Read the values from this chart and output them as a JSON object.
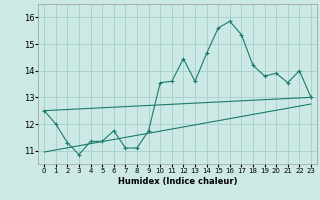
{
  "xlabel": "Humidex (Indice chaleur)",
  "background_color": "#cce9e5",
  "grid_color": "#aad4ce",
  "line_color": "#1a7a6e",
  "xlim": [
    -0.5,
    23.5
  ],
  "ylim": [
    10.5,
    16.5
  ],
  "yticks": [
    11,
    12,
    13,
    14,
    15,
    16
  ],
  "xticks": [
    0,
    1,
    2,
    3,
    4,
    5,
    6,
    7,
    8,
    9,
    10,
    11,
    12,
    13,
    14,
    15,
    16,
    17,
    18,
    19,
    20,
    21,
    22,
    23
  ],
  "main_line_x": [
    0,
    1,
    2,
    3,
    4,
    5,
    6,
    7,
    8,
    9,
    10,
    11,
    12,
    13,
    14,
    15,
    16,
    17,
    18,
    19,
    20,
    21,
    22,
    23
  ],
  "main_line_y": [
    12.5,
    12.0,
    11.3,
    10.85,
    11.35,
    11.35,
    11.75,
    11.1,
    11.1,
    11.75,
    13.55,
    13.6,
    14.45,
    13.6,
    14.65,
    15.6,
    15.85,
    15.35,
    14.2,
    13.8,
    13.9,
    13.55,
    14.0,
    13.0
  ],
  "upper_line_x": [
    0,
    23
  ],
  "upper_line_y": [
    12.5,
    13.0
  ],
  "lower_line_x": [
    0,
    23
  ],
  "lower_line_y": [
    10.95,
    12.75
  ]
}
